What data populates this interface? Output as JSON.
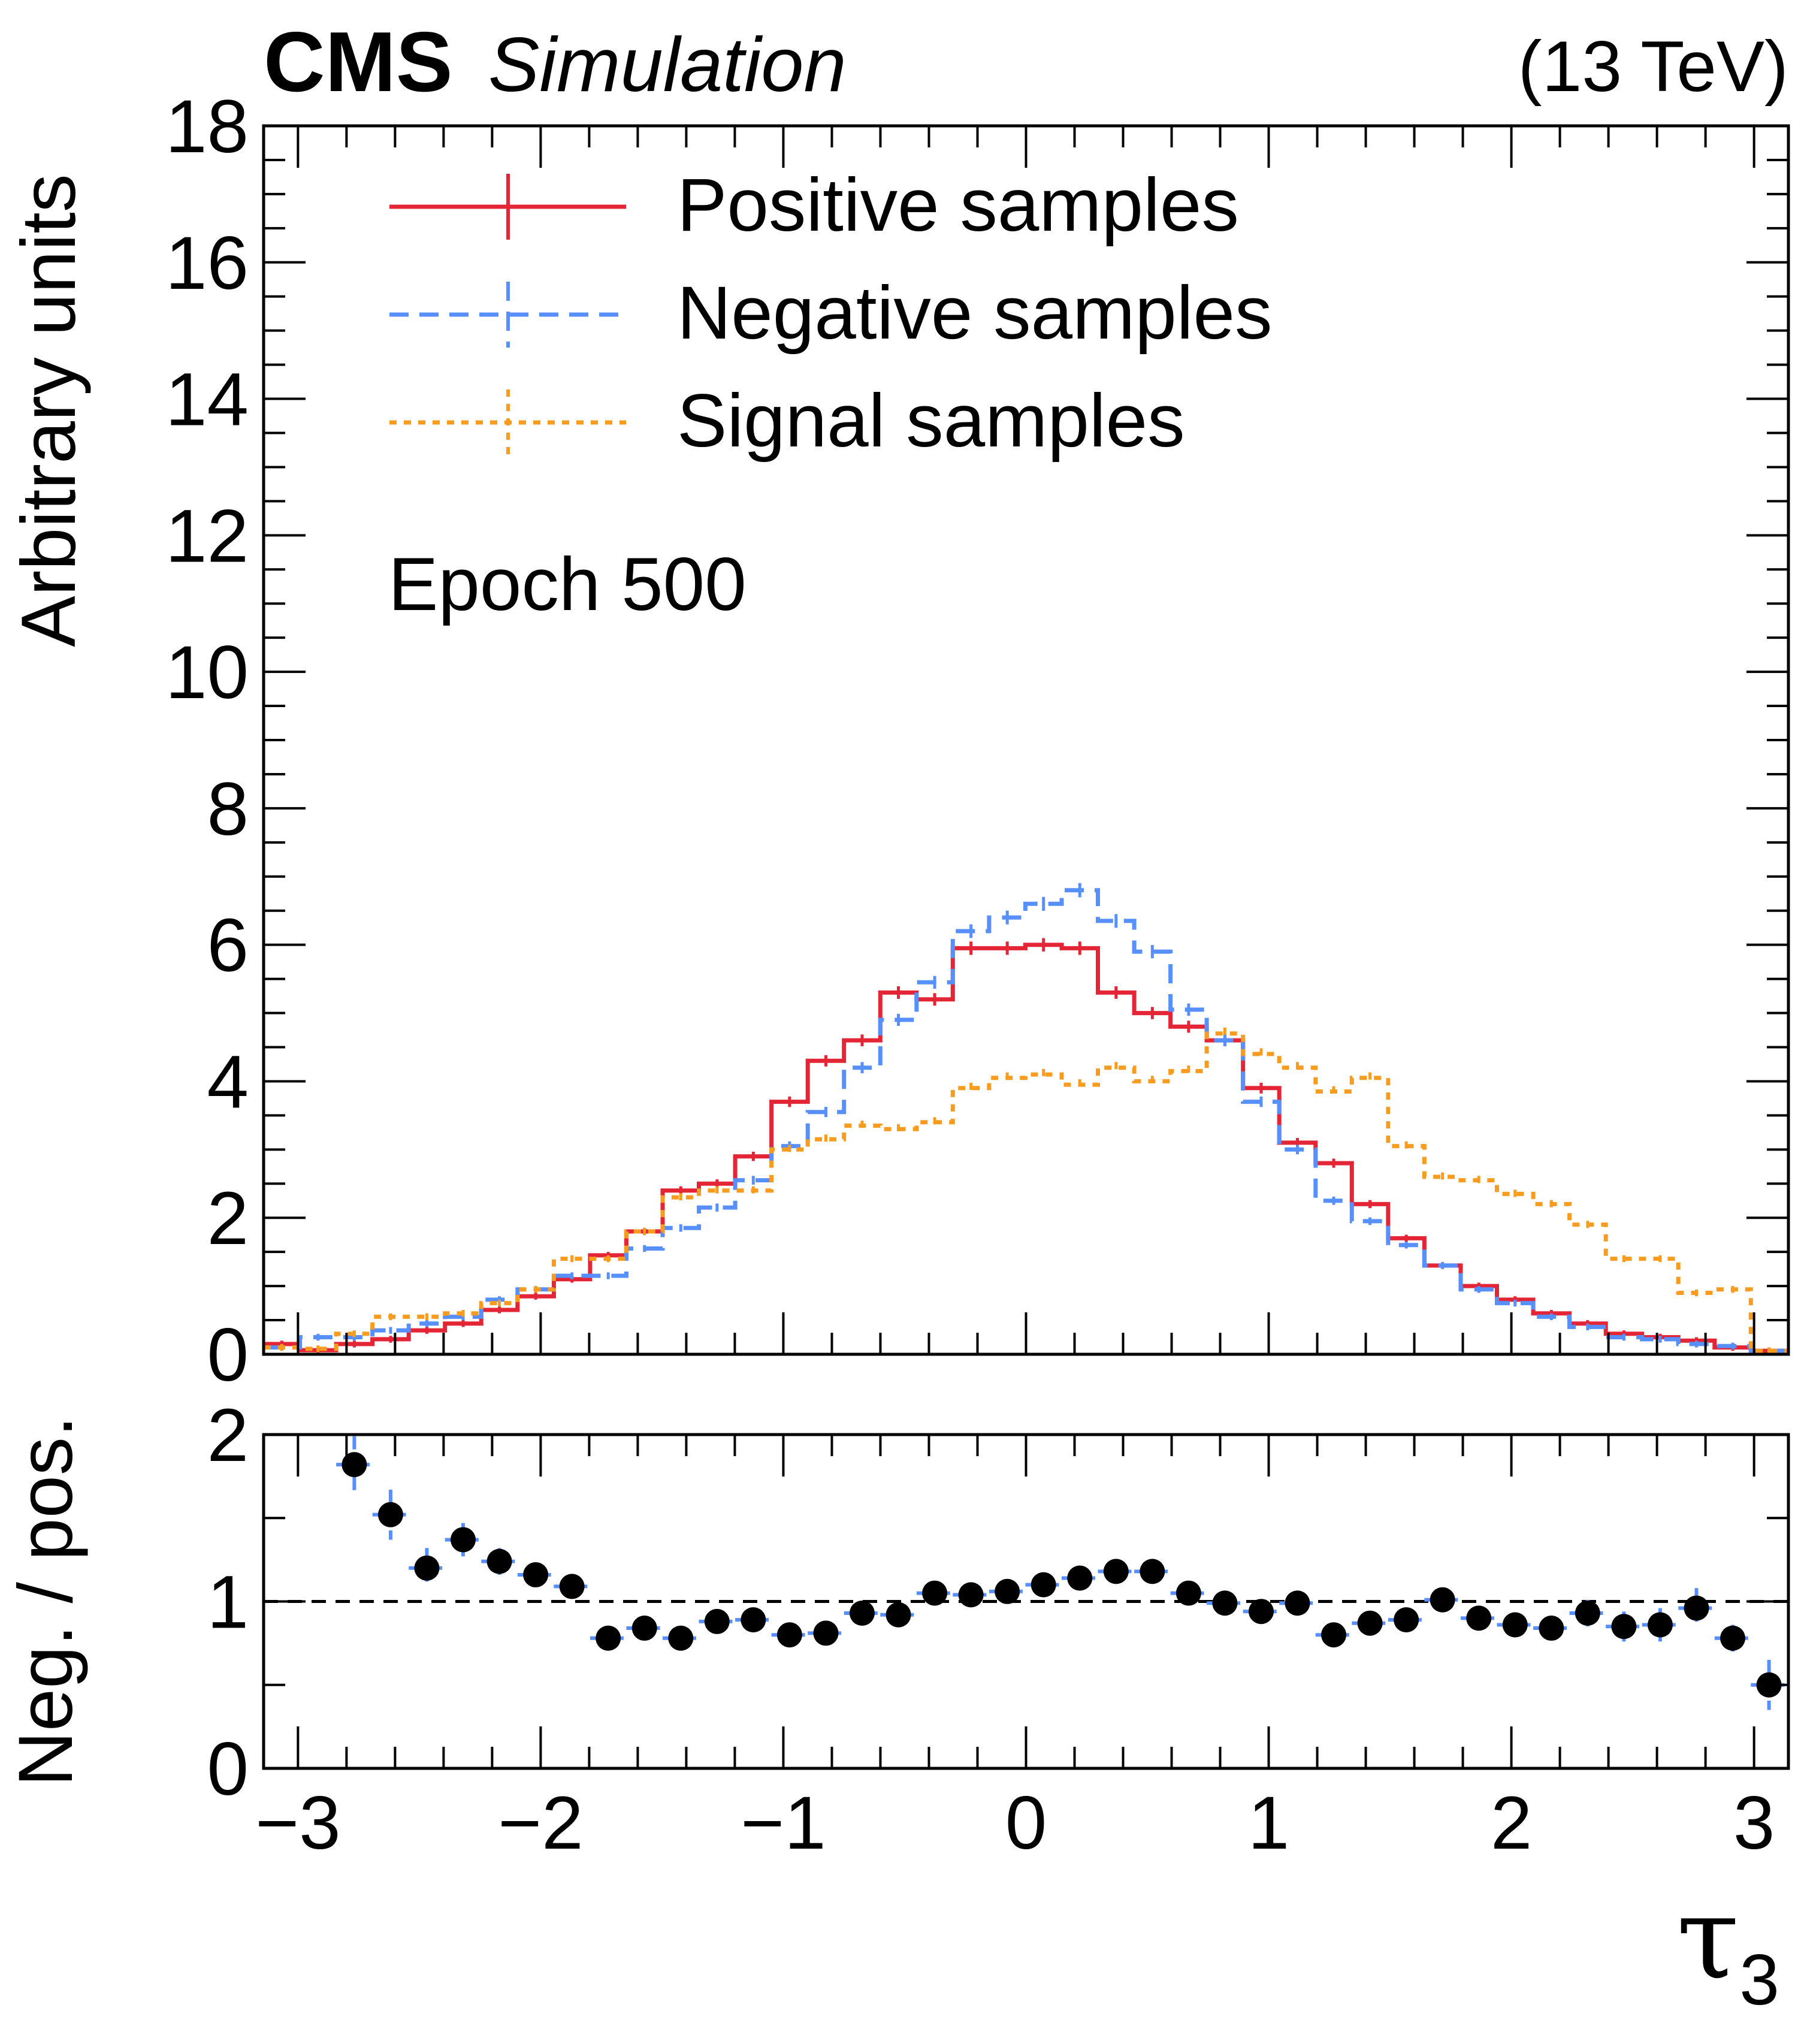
{
  "header": {
    "experiment": "CMS",
    "status": "Simulation",
    "energy": "(13 TeV)"
  },
  "annotation": "Epoch 500",
  "chart_data": [
    {
      "type": "histogram",
      "panel": "main",
      "ylabel": "Arbitrary units",
      "xlim": [
        -3.1416,
        3.1416
      ],
      "ylim": [
        0,
        18
      ],
      "x_ticks": [
        -3,
        -2,
        -1,
        0,
        1,
        2,
        3
      ],
      "x_tick_labels": [
        "−3",
        "−2",
        "−1",
        "0",
        "1",
        "2",
        "3"
      ],
      "y_ticks": [
        0,
        2,
        4,
        6,
        8,
        10,
        12,
        14,
        16,
        18
      ],
      "y_tick_labels": [
        "0",
        "2",
        "4",
        "6",
        "8",
        "10",
        "12",
        "14",
        "16",
        "18"
      ],
      "legend_position": "top-left",
      "bin_edges": [
        -3.1416,
        -2.9921,
        -2.8427,
        -2.6932,
        -2.5437,
        -2.3942,
        -2.2448,
        -2.0953,
        -1.9458,
        -1.7963,
        -1.6469,
        -1.4974,
        -1.3479,
        -1.1984,
        -1.049,
        -0.8995,
        -0.75,
        -0.6005,
        -0.4511,
        -0.3016,
        -0.1521,
        -0.0026,
        0.1468,
        0.2963,
        0.4458,
        0.5953,
        0.7447,
        0.8942,
        1.0437,
        1.1932,
        1.3426,
        1.4921,
        1.6416,
        1.7911,
        1.9405,
        2.09,
        2.2395,
        2.389,
        2.5384,
        2.6879,
        2.8374,
        2.9869,
        3.1363
      ],
      "series": [
        {
          "name": "Positive samples",
          "color": "#e42536",
          "style": "solid",
          "values": [
            0.15,
            0.06,
            0.15,
            0.22,
            0.35,
            0.45,
            0.65,
            0.85,
            1.1,
            1.45,
            1.8,
            2.4,
            2.5,
            2.9,
            3.7,
            4.3,
            4.6,
            5.3,
            5.2,
            5.95,
            5.95,
            6.0,
            5.95,
            5.3,
            5.0,
            4.8,
            4.6,
            3.9,
            3.1,
            2.8,
            2.2,
            1.7,
            1.3,
            1.0,
            0.8,
            0.6,
            0.45,
            0.3,
            0.25,
            0.2,
            0.1,
            0.05
          ]
        },
        {
          "name": "Negative samples",
          "color": "#5790fc",
          "style": "dashed",
          "values": [
            0.1,
            0.25,
            0.25,
            0.35,
            0.45,
            0.55,
            0.8,
            0.95,
            1.15,
            1.15,
            1.55,
            1.85,
            2.15,
            2.55,
            3.05,
            3.55,
            4.2,
            4.9,
            5.45,
            6.2,
            6.4,
            6.6,
            6.8,
            6.35,
            5.9,
            5.05,
            4.6,
            3.7,
            3.0,
            2.25,
            1.95,
            1.6,
            1.3,
            0.95,
            0.75,
            0.55,
            0.4,
            0.25,
            0.22,
            0.15,
            0.12,
            0.05
          ]
        },
        {
          "name": "Signal samples",
          "color": "#f89c20",
          "style": "dotted",
          "values": [
            0.1,
            0.08,
            0.3,
            0.55,
            0.55,
            0.6,
            0.75,
            0.95,
            1.4,
            1.4,
            1.8,
            2.3,
            2.4,
            2.4,
            3.0,
            3.15,
            3.35,
            3.3,
            3.4,
            3.9,
            4.05,
            4.1,
            3.95,
            4.2,
            4.0,
            4.15,
            4.7,
            4.4,
            4.2,
            3.85,
            4.05,
            3.05,
            2.6,
            2.55,
            2.35,
            2.2,
            1.9,
            1.4,
            1.4,
            0.9,
            0.95,
            0.05
          ]
        }
      ]
    },
    {
      "type": "scatter",
      "panel": "ratio",
      "ylabel": "Neg. / pos.",
      "xlabel": "τ",
      "xlabel_subscript": "3",
      "xlim": [
        -3.1416,
        3.1416
      ],
      "ylim": [
        0,
        2
      ],
      "y_ticks": [
        0,
        1,
        2
      ],
      "y_tick_labels": [
        "0",
        "1",
        "2"
      ],
      "reference_line": 1,
      "marker_color": "#000000",
      "error_color": "#5790fc",
      "x": [
        -2.7679,
        -2.6184,
        -2.469,
        -2.3195,
        -2.17,
        -2.0205,
        -1.8711,
        -1.7216,
        -1.5721,
        -1.4226,
        -1.2732,
        -1.1237,
        -0.9742,
        -0.8247,
        -0.6753,
        -0.5258,
        -0.3763,
        -0.2268,
        -0.0774,
        0.0721,
        0.2216,
        0.3711,
        0.5205,
        0.67,
        0.8195,
        0.969,
        1.1184,
        1.2679,
        1.4174,
        1.5669,
        1.7163,
        1.8658,
        2.0153,
        2.1648,
        2.3142,
        2.4637,
        2.6132,
        2.7627,
        2.9121,
        3.0616
      ],
      "values": [
        1.82,
        1.52,
        1.2,
        1.37,
        1.24,
        1.16,
        1.09,
        0.78,
        0.84,
        0.78,
        0.88,
        0.89,
        0.8,
        0.81,
        0.93,
        0.92,
        1.05,
        1.04,
        1.06,
        1.1,
        1.14,
        1.18,
        1.18,
        1.05,
        0.99,
        0.94,
        0.99,
        0.8,
        0.87,
        0.89,
        1.01,
        0.9,
        0.86,
        0.84,
        0.93,
        0.85,
        0.86,
        0.96,
        0.78,
        0.5
      ],
      "errors": [
        0.17,
        0.15,
        0.12,
        0.1,
        0.08,
        0.07,
        0.06,
        0.05,
        0.05,
        0.04,
        0.04,
        0.04,
        0.04,
        0.04,
        0.04,
        0.04,
        0.03,
        0.03,
        0.03,
        0.03,
        0.03,
        0.03,
        0.03,
        0.03,
        0.03,
        0.03,
        0.03,
        0.04,
        0.04,
        0.04,
        0.05,
        0.05,
        0.06,
        0.07,
        0.08,
        0.09,
        0.1,
        0.12,
        0.08,
        0.15
      ]
    }
  ]
}
